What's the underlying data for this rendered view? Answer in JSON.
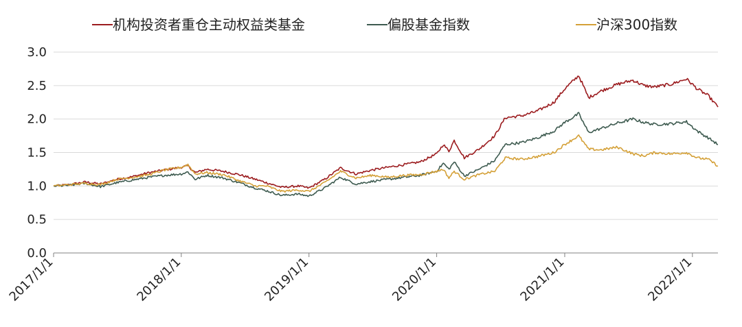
{
  "chart_data": {
    "type": "line",
    "title": "",
    "xlabel": "",
    "ylabel": "",
    "ylim": [
      0,
      3.0
    ],
    "y_ticks": [
      "0.0",
      "0.5",
      "1.0",
      "1.5",
      "2.0",
      "2.5",
      "3.0"
    ],
    "x_ticks": [
      "2017/1/1",
      "2018/1/1",
      "2019/1/1",
      "2020/1/1",
      "2021/1/1",
      "2022/1/1"
    ],
    "x_range": [
      "2017/1/1",
      "2022/3/15"
    ],
    "grid": "horizontal",
    "legend_position": "top",
    "series": [
      {
        "name": "机构投资者重仓主动权益类基金",
        "color": "#9b1b1e",
        "points": [
          [
            "2017/1/1",
            1.0
          ],
          [
            "2017/2/15",
            1.02
          ],
          [
            "2017/4/1",
            1.06
          ],
          [
            "2017/5/15",
            1.03
          ],
          [
            "2017/7/1",
            1.1
          ],
          [
            "2017/8/15",
            1.14
          ],
          [
            "2017/10/1",
            1.2
          ],
          [
            "2017/11/15",
            1.24
          ],
          [
            "2018/1/1",
            1.28
          ],
          [
            "2018/1/20",
            1.3
          ],
          [
            "2018/2/10",
            1.2
          ],
          [
            "2018/3/15",
            1.25
          ],
          [
            "2018/5/1",
            1.22
          ],
          [
            "2018/6/15",
            1.17
          ],
          [
            "2018/8/1",
            1.1
          ],
          [
            "2018/9/1",
            1.05
          ],
          [
            "2018/10/15",
            0.98
          ],
          [
            "2018/12/1",
            1.0
          ],
          [
            "2019/1/1",
            0.97
          ],
          [
            "2019/2/15",
            1.1
          ],
          [
            "2019/4/1",
            1.27
          ],
          [
            "2019/5/15",
            1.18
          ],
          [
            "2019/7/1",
            1.24
          ],
          [
            "2019/8/15",
            1.28
          ],
          [
            "2019/10/1",
            1.32
          ],
          [
            "2019/11/15",
            1.36
          ],
          [
            "2020/1/1",
            1.48
          ],
          [
            "2020/1/20",
            1.62
          ],
          [
            "2020/2/5",
            1.52
          ],
          [
            "2020/2/20",
            1.68
          ],
          [
            "2020/3/20",
            1.42
          ],
          [
            "2020/5/1",
            1.55
          ],
          [
            "2020/6/15",
            1.75
          ],
          [
            "2020/7/15",
            2.02
          ],
          [
            "2020/9/1",
            2.05
          ],
          [
            "2020/10/15",
            2.12
          ],
          [
            "2020/12/1",
            2.25
          ],
          [
            "2021/1/1",
            2.45
          ],
          [
            "2021/2/10",
            2.65
          ],
          [
            "2021/3/10",
            2.32
          ],
          [
            "2021/4/15",
            2.42
          ],
          [
            "2021/6/1",
            2.52
          ],
          [
            "2021/7/15",
            2.58
          ],
          [
            "2021/8/15",
            2.5
          ],
          [
            "2021/9/15",
            2.48
          ],
          [
            "2021/11/1",
            2.52
          ],
          [
            "2021/12/15",
            2.6
          ],
          [
            "2022/1/15",
            2.45
          ],
          [
            "2022/2/15",
            2.35
          ],
          [
            "2022/3/15",
            2.18
          ]
        ]
      },
      {
        "name": "偏股基金指数",
        "color": "#3d5a4f",
        "points": [
          [
            "2017/1/1",
            1.0
          ],
          [
            "2017/2/15",
            1.01
          ],
          [
            "2017/4/1",
            1.04
          ],
          [
            "2017/5/15",
            0.99
          ],
          [
            "2017/7/1",
            1.05
          ],
          [
            "2017/8/15",
            1.09
          ],
          [
            "2017/10/1",
            1.13
          ],
          [
            "2017/11/15",
            1.16
          ],
          [
            "2018/1/1",
            1.18
          ],
          [
            "2018/1/20",
            1.21
          ],
          [
            "2018/2/10",
            1.1
          ],
          [
            "2018/3/15",
            1.16
          ],
          [
            "2018/5/1",
            1.12
          ],
          [
            "2018/6/15",
            1.05
          ],
          [
            "2018/8/1",
            0.97
          ],
          [
            "2018/9/1",
            0.93
          ],
          [
            "2018/10/15",
            0.86
          ],
          [
            "2018/12/1",
            0.88
          ],
          [
            "2019/1/1",
            0.85
          ],
          [
            "2019/2/15",
            0.97
          ],
          [
            "2019/4/1",
            1.13
          ],
          [
            "2019/5/15",
            1.03
          ],
          [
            "2019/7/1",
            1.07
          ],
          [
            "2019/8/15",
            1.1
          ],
          [
            "2019/10/1",
            1.13
          ],
          [
            "2019/11/15",
            1.16
          ],
          [
            "2020/1/1",
            1.22
          ],
          [
            "2020/1/20",
            1.34
          ],
          [
            "2020/2/5",
            1.25
          ],
          [
            "2020/2/20",
            1.36
          ],
          [
            "2020/3/20",
            1.15
          ],
          [
            "2020/5/1",
            1.25
          ],
          [
            "2020/6/15",
            1.38
          ],
          [
            "2020/7/15",
            1.62
          ],
          [
            "2020/9/1",
            1.65
          ],
          [
            "2020/10/15",
            1.72
          ],
          [
            "2020/12/1",
            1.82
          ],
          [
            "2021/1/1",
            1.95
          ],
          [
            "2021/2/10",
            2.08
          ],
          [
            "2021/3/10",
            1.8
          ],
          [
            "2021/4/15",
            1.86
          ],
          [
            "2021/6/1",
            1.94
          ],
          [
            "2021/7/15",
            2.0
          ],
          [
            "2021/8/15",
            1.95
          ],
          [
            "2021/9/15",
            1.92
          ],
          [
            "2021/11/1",
            1.93
          ],
          [
            "2021/12/15",
            1.96
          ],
          [
            "2022/1/15",
            1.82
          ],
          [
            "2022/2/15",
            1.72
          ],
          [
            "2022/3/15",
            1.62
          ]
        ]
      },
      {
        "name": "沪深300指数",
        "color": "#d4a037",
        "points": [
          [
            "2017/1/1",
            1.0
          ],
          [
            "2017/2/15",
            1.02
          ],
          [
            "2017/4/1",
            1.04
          ],
          [
            "2017/5/15",
            1.02
          ],
          [
            "2017/7/1",
            1.1
          ],
          [
            "2017/8/15",
            1.13
          ],
          [
            "2017/10/1",
            1.17
          ],
          [
            "2017/11/15",
            1.24
          ],
          [
            "2018/1/1",
            1.28
          ],
          [
            "2018/1/20",
            1.32
          ],
          [
            "2018/2/10",
            1.18
          ],
          [
            "2018/3/15",
            1.2
          ],
          [
            "2018/5/1",
            1.17
          ],
          [
            "2018/6/15",
            1.08
          ],
          [
            "2018/8/1",
            1.0
          ],
          [
            "2018/9/1",
            1.0
          ],
          [
            "2018/10/15",
            0.92
          ],
          [
            "2018/12/1",
            0.94
          ],
          [
            "2019/1/1",
            0.92
          ],
          [
            "2019/2/15",
            1.05
          ],
          [
            "2019/4/1",
            1.22
          ],
          [
            "2019/5/15",
            1.12
          ],
          [
            "2019/7/1",
            1.16
          ],
          [
            "2019/8/15",
            1.13
          ],
          [
            "2019/10/1",
            1.16
          ],
          [
            "2019/11/15",
            1.17
          ],
          [
            "2020/1/1",
            1.22
          ],
          [
            "2020/1/20",
            1.25
          ],
          [
            "2020/2/5",
            1.12
          ],
          [
            "2020/2/20",
            1.22
          ],
          [
            "2020/3/20",
            1.1
          ],
          [
            "2020/5/1",
            1.17
          ],
          [
            "2020/6/15",
            1.22
          ],
          [
            "2020/7/15",
            1.42
          ],
          [
            "2020/9/1",
            1.4
          ],
          [
            "2020/10/15",
            1.44
          ],
          [
            "2020/12/1",
            1.5
          ],
          [
            "2021/1/1",
            1.62
          ],
          [
            "2021/2/10",
            1.75
          ],
          [
            "2021/3/10",
            1.55
          ],
          [
            "2021/4/15",
            1.54
          ],
          [
            "2021/6/1",
            1.58
          ],
          [
            "2021/7/15",
            1.48
          ],
          [
            "2021/8/15",
            1.45
          ],
          [
            "2021/9/15",
            1.5
          ],
          [
            "2021/11/1",
            1.48
          ],
          [
            "2021/12/15",
            1.5
          ],
          [
            "2022/1/15",
            1.42
          ],
          [
            "2022/2/15",
            1.4
          ],
          [
            "2022/3/15",
            1.3
          ]
        ]
      }
    ]
  }
}
